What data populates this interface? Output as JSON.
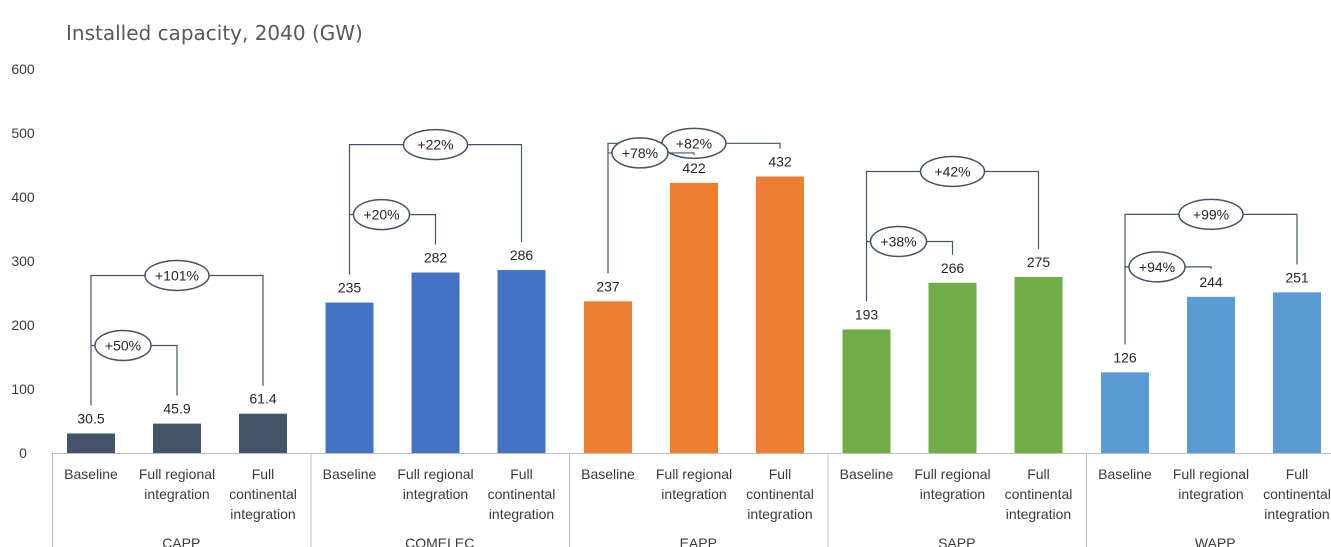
{
  "chart_data": {
    "type": "bar",
    "title": "Installed capacity, 2040 (GW)",
    "xlabel": "",
    "ylabel": "",
    "ylim": [
      0,
      600
    ],
    "yticks": [
      "0",
      "100",
      "200",
      "300",
      "400",
      "500",
      "600"
    ],
    "grid": false,
    "legend": "none",
    "groups": [
      {
        "name": "CAPP",
        "color": "#44546a",
        "categories": [
          [
            "Baseline"
          ],
          [
            "Full regional",
            "integration"
          ],
          [
            "Full",
            "continental",
            "integration"
          ]
        ],
        "values": [
          30.5,
          45.9,
          61.4
        ],
        "labels": [
          "30.5",
          "45.9",
          "61.4"
        ],
        "changes": [
          "+50%",
          "+101%"
        ]
      },
      {
        "name": "COMELEC",
        "color": "#4472c4",
        "categories": [
          [
            "Baseline"
          ],
          [
            "Full regional",
            "integration"
          ],
          [
            "Full",
            "continental",
            "integration"
          ]
        ],
        "values": [
          235,
          282,
          286
        ],
        "labels": [
          "235",
          "282",
          "286"
        ],
        "changes": [
          "+20%",
          "+22%"
        ]
      },
      {
        "name": "EAPP",
        "color": "#ed7d31",
        "categories": [
          [
            "Baseline"
          ],
          [
            "Full regional",
            "integration"
          ],
          [
            "Full",
            "continental",
            "integration"
          ]
        ],
        "values": [
          237,
          422,
          432
        ],
        "labels": [
          "237",
          "422",
          "432"
        ],
        "changes": [
          "+78%",
          "+82%"
        ]
      },
      {
        "name": "SAPP",
        "color": "#70ad47",
        "categories": [
          [
            "Baseline"
          ],
          [
            "Full regional",
            "integration"
          ],
          [
            "Full",
            "continental",
            "integration"
          ]
        ],
        "values": [
          193,
          266,
          275
        ],
        "labels": [
          "193",
          "266",
          "275"
        ],
        "changes": [
          "+38%",
          "+42%"
        ]
      },
      {
        "name": "WAPP",
        "color": "#5b9bd5",
        "categories": [
          [
            "Baseline"
          ],
          [
            "Full regional",
            "integration"
          ],
          [
            "Full",
            "continental",
            "integration"
          ]
        ],
        "values": [
          126,
          244,
          251
        ],
        "labels": [
          "126",
          "244",
          "251"
        ],
        "changes": [
          "+94%",
          "+99%"
        ]
      }
    ]
  }
}
